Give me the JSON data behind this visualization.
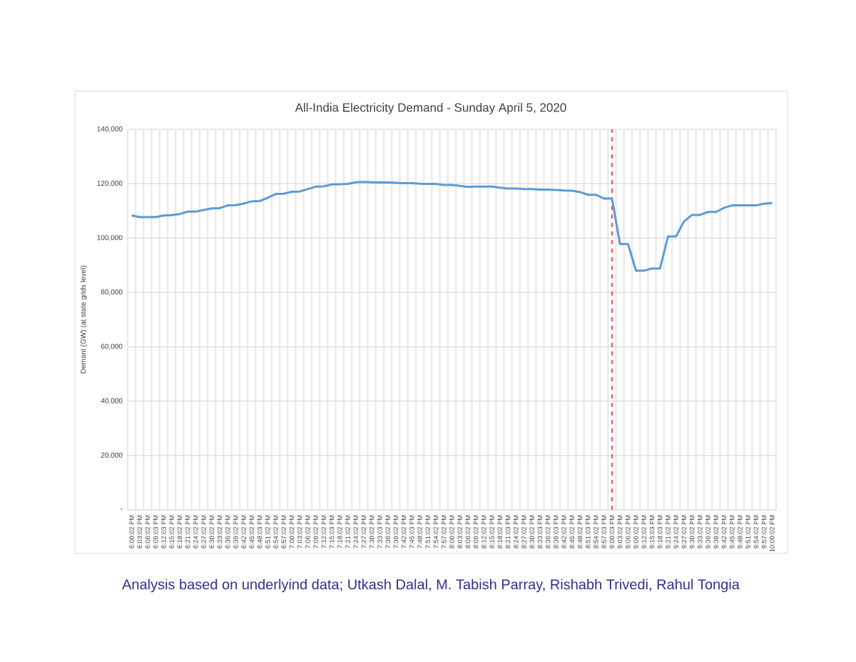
{
  "chart_data": {
    "type": "line",
    "title": "All-India Electricity Demand - Sunday April 5, 2020",
    "ylabel": "Demant (GW) (at state grids level)",
    "categories": [
      "6:00:02 PM",
      "6:03:02 PM",
      "6:06:02 PM",
      "6:09:03 PM",
      "6:12:03 PM",
      "6:15:02 PM",
      "6:18:02 PM",
      "6:21:02 PM",
      "6:24:02 PM",
      "6:27:02 PM",
      "6:30:02 PM",
      "6:33:02 PM",
      "6:36:02 PM",
      "6:39:02 PM",
      "6:42:02 PM",
      "6:45:02 PM",
      "6:48:03 PM",
      "6:51:02 PM",
      "6:54:02 PM",
      "6:57:02 PM",
      "7:00:02 PM",
      "7:03:02 PM",
      "7:06:02 PM",
      "7:09:02 PM",
      "7:12:02 PM",
      "7:15:03 PM",
      "7:18:02 PM",
      "7:21:02 PM",
      "7:24:02 PM",
      "7:27:02 PM",
      "7:30:02 PM",
      "7:33:03 PM",
      "7:36:02 PM",
      "7:39:02 PM",
      "7:42:02 PM",
      "7:45:03 PM",
      "7:48:02 PM",
      "7:51:02 PM",
      "7:54:02 PM",
      "7:57:02 PM",
      "8:00:02 PM",
      "8:03:02 PM",
      "8:06:02 PM",
      "8:09:02 PM",
      "8:12:02 PM",
      "8:15:02 PM",
      "8:18:02 PM",
      "8:21:03 PM",
      "8:24:02 PM",
      "8:27:02 PM",
      "8:30:02 PM",
      "8:33:03 PM",
      "8:36:02 PM",
      "8:39:03 PM",
      "8:42:02 PM",
      "8:45:02 PM",
      "8:48:02 PM",
      "8:51:03 PM",
      "8:54:02 PM",
      "8:57:03 PM",
      "9:00:03 PM",
      "9:03:02 PM",
      "9:06:02 PM",
      "9:09:02 PM",
      "9:12:02 PM",
      "9:15:03 PM",
      "9:18:03 PM",
      "9:21:02 PM",
      "9:24:02 PM",
      "9:27:02 PM",
      "9:30:02 PM",
      "9:33:02 PM",
      "9:36:02 PM",
      "9:39:02 PM",
      "9:42:02 PM",
      "9:45:02 PM",
      "9:48:02 PM",
      "9:51:02 PM",
      "9:54:02 PM",
      "9:57:02 PM",
      "10:00:02 PM"
    ],
    "series": [
      {
        "color": "#5b9bd5",
        "values": [
          108300,
          107700,
          107700,
          107700,
          108300,
          108400,
          108800,
          109700,
          109700,
          110300,
          110900,
          111000,
          112000,
          112100,
          112700,
          113500,
          113600,
          114800,
          116200,
          116300,
          117000,
          117100,
          118000,
          118900,
          119000,
          119700,
          119800,
          119900,
          120500,
          120600,
          120500,
          120400,
          120400,
          120300,
          120200,
          120200,
          120000,
          119900,
          119900,
          119500,
          119500,
          119200,
          118800,
          118900,
          118900,
          118900,
          118500,
          118200,
          118200,
          118000,
          118000,
          117800,
          117800,
          117700,
          117500,
          117400,
          116900,
          115900,
          115900,
          114500,
          114500,
          97800,
          97800,
          88000,
          88000,
          88800,
          88800,
          100600,
          100600,
          106100,
          108500,
          108500,
          109600,
          109600,
          111100,
          112000,
          112000,
          112000,
          112000,
          112600,
          112900
        ]
      }
    ],
    "ylim": [
      0,
      140000
    ],
    "yticks": [
      {
        "value": 0,
        "label": "-"
      },
      {
        "value": 20000,
        "label": "20,000"
      },
      {
        "value": 40000,
        "label": "40,000"
      },
      {
        "value": 60000,
        "label": "60,000"
      },
      {
        "value": 80000,
        "label": "80,000"
      },
      {
        "value": 100000,
        "label": "100,000"
      },
      {
        "value": 120000,
        "label": "120,000"
      },
      {
        "value": 140000,
        "label": "140,000"
      }
    ],
    "grid": true,
    "ref_lines": [
      {
        "axis": "x",
        "value": "9:00:03 PM",
        "color": "#ff0000",
        "line_style": "dashed"
      }
    ],
    "annotations": [
      "Analysis based on underlyind data; Utkash Dalal, M. Tabish Parray, Rishabh Trivedi, Rahul Tongia"
    ]
  }
}
